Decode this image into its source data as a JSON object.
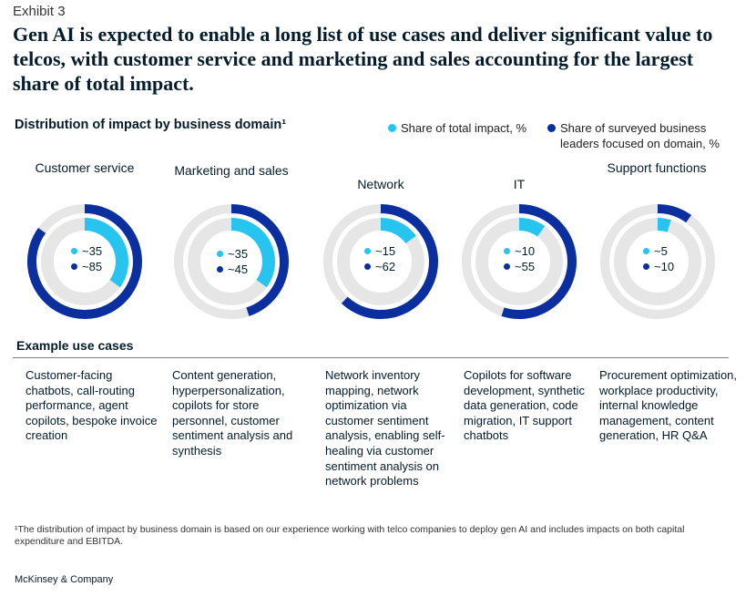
{
  "exhibit_label": "Exhibit 3",
  "title": "Gen AI is expected to enable a long list of use cases and deliver significant value to telcos, with customer service and marketing and sales accounting for the largest share of total impact.",
  "colors": {
    "share": "#27c4f0",
    "leaders": "#0b2f9e",
    "track": "#e6e6e6",
    "text": "#051c2c"
  },
  "chart_data": {
    "type": "donut",
    "title": "Distribution of impact by business domain¹",
    "legend": {
      "share": "Share of total impact, %",
      "leaders": "Share of surveyed business leaders focused on domain, %"
    },
    "domains": [
      {
        "name": "Customer service",
        "share_label": "~35",
        "leaders_label": "~85",
        "share": 35,
        "leaders": 85,
        "use_cases": "Customer-facing chatbots, call-routing performance, agent copilots, bespoke invoice creation"
      },
      {
        "name": "Marketing and sales",
        "share_label": "~35",
        "leaders_label": "~45",
        "share": 35,
        "leaders": 45,
        "use_cases": "Content generation, hyperpersonalization, copilots for store personnel, customer sentiment analysis and synthesis"
      },
      {
        "name": "Network",
        "share_label": "~15",
        "leaders_label": "~62",
        "share": 15,
        "leaders": 62,
        "use_cases": "Network inventory mapping, network optimization via customer sentiment analysis, enabling self-healing via customer sentiment analysis on network problems"
      },
      {
        "name": "IT",
        "share_label": "~10",
        "leaders_label": "~55",
        "share": 10,
        "leaders": 55,
        "use_cases": "Copilots for software development, synthetic data generation, code migration, IT support chatbots"
      },
      {
        "name": "Support functions",
        "share_label": "~5",
        "leaders_label": "~10",
        "share": 5,
        "leaders": 10,
        "use_cases": "Procurement optimization, workplace productivity, internal knowledge management, content generation, HR Q&A"
      }
    ]
  },
  "use_cases_heading": "Example use cases",
  "footnote": "¹The distribution of impact by business domain is based on our experience working with telco companies to deploy gen AI and includes impacts on both capital expenditure and EBITDA.",
  "brand": "McKinsey & Company"
}
